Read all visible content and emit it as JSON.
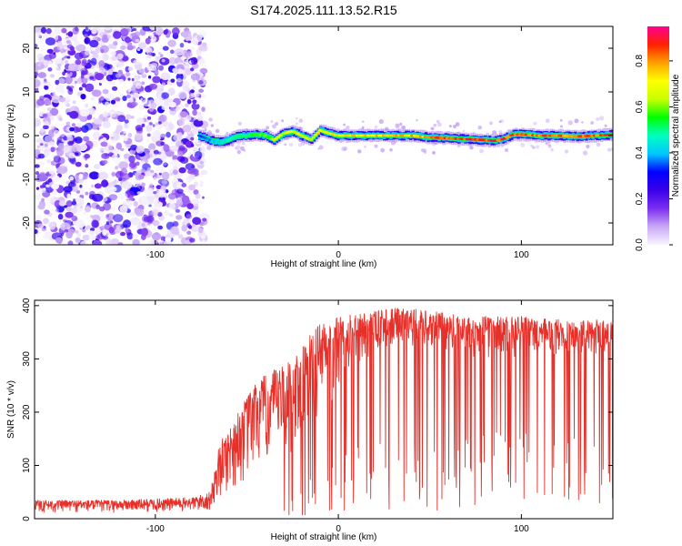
{
  "title": "S174.2025.111.13.52.R15",
  "chart_data": [
    {
      "type": "heatmap",
      "xlabel": "Height of straight line (km)",
      "ylabel": "Frequency (Hz)",
      "xlim": [
        -166,
        150
      ],
      "ylim": [
        -25,
        25
      ],
      "xticks": [
        -100,
        0,
        100
      ],
      "xtick_labels": [
        "-100",
        "0",
        "100"
      ],
      "yticks": [
        -20,
        -10,
        0,
        10,
        20
      ],
      "ytick_labels": [
        "-20",
        "-10",
        "0",
        "10",
        "20"
      ],
      "colorbar": {
        "label": "Normalized spectral amplitude",
        "range": [
          0,
          0.95
        ],
        "ticks": [
          0,
          0.2,
          0.4,
          0.6,
          0.8
        ],
        "tick_labels": [
          "0.0",
          "0.2",
          "0.4",
          "0.6",
          "0.8"
        ],
        "colormap": [
          "#f8f4ff",
          "#c9a8f5",
          "#7a2ef0",
          "#3a00e8",
          "#0000ff",
          "#00c8ff",
          "#00ffc0",
          "#00ff00",
          "#c8ff00",
          "#ffff00",
          "#ffa000",
          "#ff2000",
          "#ff0090"
        ]
      },
      "noise_region_x": [
        -166,
        -76
      ],
      "ridge": {
        "x": [
          -76,
          -70,
          -65,
          -60,
          -55,
          -50,
          -45,
          -40,
          -35,
          -30,
          -25,
          -20,
          -15,
          -10,
          -5,
          0,
          10,
          20,
          30,
          40,
          50,
          60,
          70,
          80,
          85,
          90,
          95,
          100,
          110,
          120,
          130,
          140,
          150
        ],
        "freq": [
          0,
          -1,
          -1.5,
          -1,
          0,
          0,
          0.3,
          0,
          -1,
          0.5,
          1,
          0,
          -1,
          1.2,
          0.5,
          0,
          0,
          0,
          0,
          0,
          -0.4,
          -0.6,
          -0.8,
          -1,
          -1.2,
          -0.8,
          0.2,
          0.3,
          0,
          0,
          -0.2,
          0,
          0.2
        ],
        "amp": [
          0.35,
          0.4,
          0.45,
          0.5,
          0.5,
          0.55,
          0.6,
          0.6,
          0.65,
          0.7,
          0.72,
          0.7,
          0.72,
          0.75,
          0.75,
          0.75,
          0.78,
          0.78,
          0.8,
          0.8,
          0.85,
          0.88,
          0.9,
          0.9,
          0.92,
          0.9,
          0.88,
          0.88,
          0.88,
          0.85,
          0.85,
          0.88,
          0.88
        ]
      }
    },
    {
      "type": "line",
      "xlabel": "Height of straight line (km)",
      "ylabel": "SNR (10 * v/v)",
      "xlim": [
        -166,
        150
      ],
      "ylim": [
        0,
        410
      ],
      "xticks": [
        -100,
        0,
        100
      ],
      "xtick_labels": [
        "-100",
        "0",
        "100"
      ],
      "yticks": [
        0,
        100,
        200,
        300,
        400
      ],
      "ytick_labels": [
        "0",
        "100",
        "200",
        "300",
        "400"
      ],
      "series": [
        {
          "color": "#e8302a",
          "envelope_x": [
            -166,
            -120,
            -80,
            -70,
            -65,
            -60,
            -55,
            -50,
            -45,
            -40,
            -35,
            -30,
            -25,
            -20,
            -15,
            -10,
            -5,
            0,
            10,
            20,
            30,
            40,
            50,
            60,
            70,
            80,
            90,
            100,
            110,
            120,
            130,
            140,
            150
          ],
          "envelope_low": [
            10,
            10,
            10,
            10,
            30,
            40,
            50,
            60,
            70,
            80,
            90,
            100,
            110,
            130,
            150,
            170,
            200,
            230,
            280,
            310,
            320,
            320,
            320,
            310,
            300,
            300,
            300,
            300,
            300,
            300,
            300,
            300,
            300
          ],
          "envelope_high": [
            35,
            35,
            40,
            50,
            140,
            170,
            200,
            230,
            260,
            270,
            280,
            290,
            300,
            320,
            350,
            370,
            380,
            380,
            385,
            390,
            395,
            395,
            390,
            385,
            380,
            380,
            380,
            380,
            375,
            375,
            370,
            375,
            375
          ]
        }
      ]
    }
  ]
}
